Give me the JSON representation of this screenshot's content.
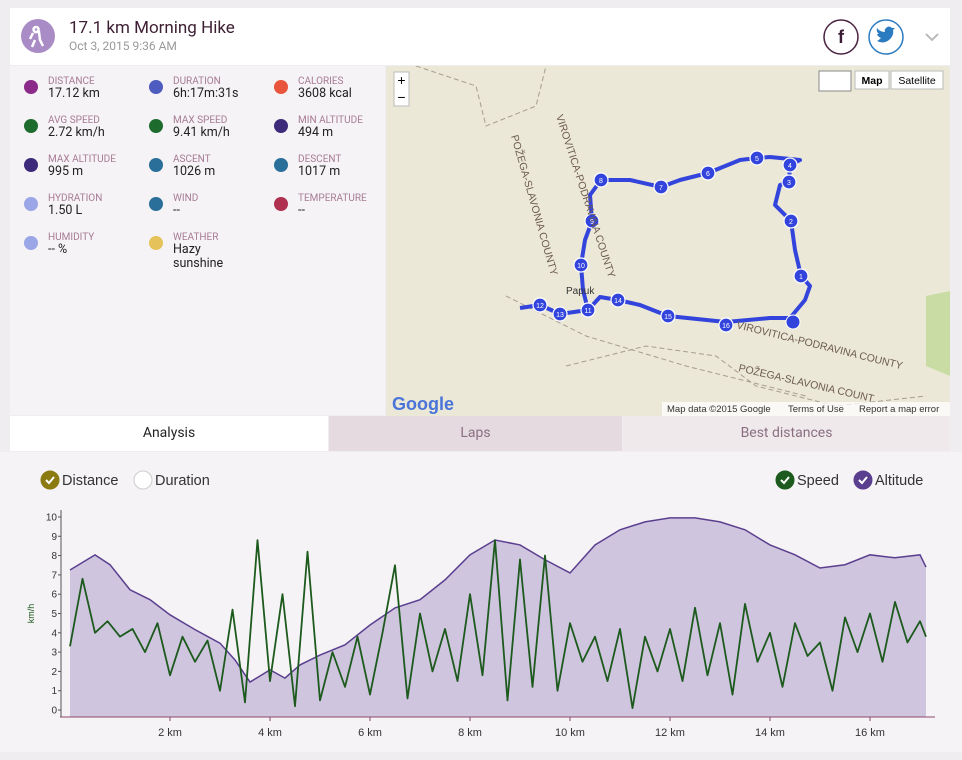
{
  "header": {
    "title": "17.1 km Morning Hike",
    "date": "Oct 3, 2015 9:36 AM"
  },
  "stats": [
    {
      "label": "DISTANCE",
      "value": "17.12 km"
    },
    {
      "label": "DURATION",
      "value": "6h:17m:31s"
    },
    {
      "label": "CALORIES",
      "value": "3608 kcal"
    },
    {
      "label": "AVG SPEED",
      "value": "2.72 km/h"
    },
    {
      "label": "MAX SPEED",
      "value": "9.41 km/h"
    },
    {
      "label": "MIN ALTITUDE",
      "value": "494 m"
    },
    {
      "label": "MAX ALTITUDE",
      "value": "995 m"
    },
    {
      "label": "ASCENT",
      "value": "1026 m"
    },
    {
      "label": "DESCENT",
      "value": "1017 m"
    },
    {
      "label": "HYDRATION",
      "value": "1.50 L"
    },
    {
      "label": "WIND",
      "value": "--"
    },
    {
      "label": "TEMPERATURE",
      "value": "--"
    },
    {
      "label": "HUMIDITY",
      "value": "-- %"
    },
    {
      "label": "WEATHER",
      "value": "Hazy sunshine"
    }
  ],
  "map": {
    "zoom_in": "+",
    "zoom_out": "−",
    "map_types": [
      "Map",
      "Satellite"
    ],
    "labels": [
      "VIROVITICA-PODRAVINA COUNTY",
      "POŽEGA-SLAVONIA COUNTY",
      "VIROVITICA-PODRAVINA COUNTY",
      "POŽEGA-SLAVONIA COUNT"
    ],
    "place": "Papuk",
    "waypoints": [
      "1",
      "2",
      "3",
      "4",
      "5",
      "6",
      "7",
      "8",
      "9",
      "10",
      "11",
      "12",
      "13",
      "14",
      "15",
      "16"
    ],
    "logo": "Google",
    "footer": [
      "Map data ©2015 Google",
      "Terms of Use",
      "Report a map error"
    ]
  },
  "tabs": [
    "Analysis",
    "Laps",
    "Best distances"
  ],
  "chart_data": {
    "type": "line",
    "x_modes": [
      "Distance",
      "Duration"
    ],
    "x_mode_selected": 0,
    "y_axis_label": "km/h",
    "xlim": [
      -0.2,
      17.3
    ],
    "xticks": [
      {
        "value": 2,
        "label": "2 km"
      },
      {
        "value": 4,
        "label": "4 km"
      },
      {
        "value": 6,
        "label": "6 km"
      },
      {
        "value": 8,
        "label": "8 km"
      },
      {
        "value": 10,
        "label": "10 km"
      },
      {
        "value": 12,
        "label": "12 km"
      },
      {
        "value": 14,
        "label": "14 km"
      },
      {
        "value": 16,
        "label": "16 km"
      }
    ],
    "ylim": [
      -0.36,
      10.36
    ],
    "yticks": [
      0,
      1,
      2,
      3,
      4,
      5,
      6,
      7,
      8,
      9,
      10
    ],
    "y2lim": [
      388,
      1016
    ],
    "series": [
      {
        "name": "Speed",
        "color": "#1d5a1d",
        "x": [
          0,
          0.25,
          0.5,
          0.75,
          1,
          1.25,
          1.5,
          1.75,
          2,
          2.25,
          2.5,
          2.75,
          3,
          3.25,
          3.5,
          3.75,
          4,
          4.25,
          4.5,
          4.75,
          5,
          5.25,
          5.5,
          5.75,
          6,
          6.25,
          6.5,
          6.75,
          7,
          7.25,
          7.5,
          7.75,
          8,
          8.25,
          8.5,
          8.75,
          9,
          9.25,
          9.5,
          9.75,
          10,
          10.25,
          10.5,
          10.75,
          11,
          11.25,
          11.5,
          11.75,
          12,
          12.25,
          12.5,
          12.75,
          13,
          13.25,
          13.5,
          13.75,
          14,
          14.25,
          14.5,
          14.75,
          15,
          15.25,
          15.5,
          15.75,
          16,
          16.25,
          16.5,
          16.75,
          17,
          17.12
        ],
        "values": [
          3.3,
          6.8,
          4.0,
          4.6,
          3.8,
          4.2,
          3.0,
          4.5,
          1.8,
          3.8,
          2.5,
          3.6,
          1.0,
          5.2,
          0.4,
          8.8,
          1.5,
          6.0,
          0.2,
          8.2,
          0.5,
          3.0,
          1.2,
          3.8,
          0.8,
          4.0,
          7.5,
          0.6,
          5.0,
          2.0,
          4.2,
          1.5,
          6.0,
          1.8,
          8.8,
          0.5,
          7.8,
          1.2,
          8.0,
          1.0,
          4.5,
          2.5,
          3.8,
          1.5,
          4.2,
          0.1,
          3.8,
          2.0,
          4.2,
          1.5,
          5.3,
          1.8,
          4.5,
          0.8,
          5.5,
          2.5,
          4.0,
          1.2,
          4.5,
          2.8,
          3.5,
          1.0,
          4.8,
          3.0,
          5.0,
          2.5,
          5.6,
          3.5,
          4.6,
          3.8
        ]
      },
      {
        "name": "Altitude",
        "color": "#5b3f8f",
        "axis": "y2",
        "x": [
          0,
          0.5,
          0.8,
          1.2,
          1.6,
          2,
          2.5,
          3,
          3.3,
          3.6,
          4,
          4.3,
          4.6,
          5,
          5.5,
          6,
          6.5,
          7,
          7.5,
          8,
          8.5,
          9,
          9.5,
          10,
          10.5,
          11,
          11.5,
          12,
          12.5,
          13,
          13.5,
          14,
          14.5,
          15,
          15.5,
          16,
          16.5,
          17,
          17.12
        ],
        "values": [
          834,
          880,
          850,
          774,
          744,
          698,
          653,
          612,
          561,
          494,
          531,
          506,
          546,
          576,
          607,
          667,
          719,
          744,
          804,
          880,
          925,
          910,
          865,
          825,
          910,
          956,
          980,
          992,
          992,
          980,
          956,
          910,
          880,
          840,
          850,
          880,
          871,
          880,
          843
        ]
      }
    ]
  }
}
